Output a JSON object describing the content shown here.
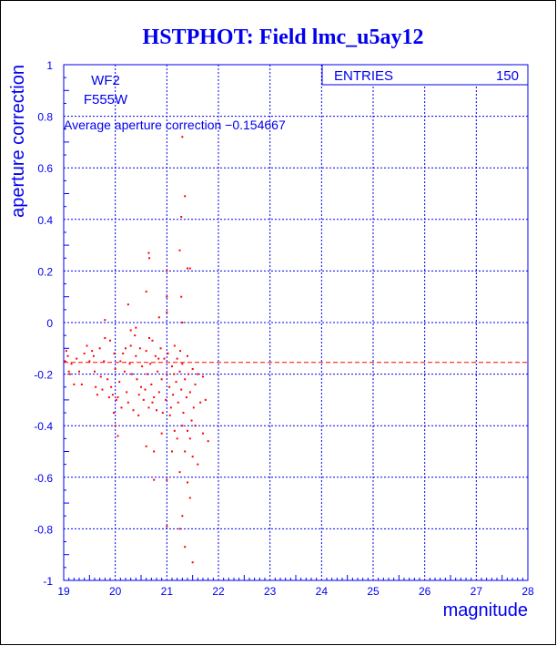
{
  "chart_data": {
    "type": "scatter",
    "title": "HSTPHOT: Field lmc_u5ay12",
    "xlabel": "magnitude",
    "ylabel": "aperture correction",
    "xlim": [
      19,
      28
    ],
    "ylim": [
      -1,
      1
    ],
    "xticks": [
      "19",
      "20",
      "21",
      "22",
      "23",
      "24",
      "25",
      "26",
      "27",
      "28"
    ],
    "yticks": [
      "-1",
      "-0.8",
      "-0.6",
      "-0.4",
      "-0.2",
      "0",
      "0.2",
      "0.4",
      "0.6",
      "0.8",
      "1"
    ],
    "grid": true,
    "labels": {
      "chip": "WF2",
      "filter": "F555W",
      "average": "Average aperture correction −0.154667"
    },
    "stats": {
      "label": "ENTRIES",
      "value": "150"
    },
    "mean_line": -0.154667,
    "colors": {
      "axes": "#0000ee",
      "points": "#ff0000",
      "mean_line": "#ff0000"
    },
    "points": [
      [
        19.02,
        -0.15
      ],
      [
        19.05,
        -0.11
      ],
      [
        19.08,
        -0.13
      ],
      [
        19.1,
        -0.19
      ],
      [
        19.15,
        -0.16
      ],
      [
        19.2,
        -0.24
      ],
      [
        19.25,
        -0.14
      ],
      [
        19.3,
        -0.19
      ],
      [
        19.4,
        -0.12
      ],
      [
        19.45,
        -0.09
      ],
      [
        19.5,
        -0.15
      ],
      [
        19.55,
        -0.11
      ],
      [
        19.6,
        -0.19
      ],
      [
        19.62,
        -0.25
      ],
      [
        19.65,
        -0.28
      ],
      [
        19.7,
        -0.1
      ],
      [
        19.72,
        -0.21
      ],
      [
        19.78,
        -0.15
      ],
      [
        19.8,
        -0.06
      ],
      [
        19.85,
        -0.22
      ],
      [
        19.88,
        -0.29
      ],
      [
        19.9,
        -0.07
      ],
      [
        19.92,
        -0.25
      ],
      [
        19.95,
        -0.28
      ],
      [
        19.97,
        -0.35
      ],
      [
        20.0,
        -0.18
      ],
      [
        20.02,
        -0.3
      ],
      [
        20.05,
        -0.29
      ],
      [
        20.08,
        -0.23
      ],
      [
        20.1,
        -0.15
      ],
      [
        20.15,
        -0.12
      ],
      [
        20.2,
        -0.1
      ],
      [
        20.22,
        -0.27
      ],
      [
        20.25,
        -0.31
      ],
      [
        20.3,
        -0.09
      ],
      [
        20.32,
        -0.2
      ],
      [
        20.35,
        -0.34
      ],
      [
        20.38,
        -0.05
      ],
      [
        20.4,
        -0.13
      ],
      [
        20.42,
        -0.22
      ],
      [
        20.45,
        -0.36
      ],
      [
        20.48,
        -0.1
      ],
      [
        20.5,
        -0.25
      ],
      [
        20.52,
        -0.17
      ],
      [
        20.55,
        -0.3
      ],
      [
        20.58,
        -0.26
      ],
      [
        20.6,
        -0.11
      ],
      [
        20.62,
        -0.2
      ],
      [
        20.65,
        -0.33
      ],
      [
        20.68,
        -0.16
      ],
      [
        20.7,
        -0.24
      ],
      [
        20.72,
        -0.07
      ],
      [
        20.75,
        -0.29
      ],
      [
        20.78,
        -0.13
      ],
      [
        20.8,
        -0.34
      ],
      [
        20.82,
        -0.19
      ],
      [
        20.85,
        -0.27
      ],
      [
        20.88,
        -0.1
      ],
      [
        20.9,
        -0.22
      ],
      [
        20.92,
        -0.35
      ],
      [
        20.95,
        -0.14
      ],
      [
        20.98,
        -0.3
      ],
      [
        21.0,
        -0.2
      ],
      [
        21.02,
        -0.12
      ],
      [
        21.05,
        -0.25
      ],
      [
        21.08,
        -0.33
      ],
      [
        21.1,
        -0.17
      ],
      [
        21.12,
        -0.28
      ],
      [
        21.15,
        -0.09
      ],
      [
        21.18,
        -0.23
      ],
      [
        21.2,
        -0.14
      ],
      [
        21.22,
        -0.31
      ],
      [
        21.25,
        -0.19
      ],
      [
        21.28,
        -0.26
      ],
      [
        21.3,
        -0.16
      ],
      [
        21.32,
        -0.35
      ],
      [
        21.35,
        -0.22
      ],
      [
        21.38,
        -0.29
      ],
      [
        21.4,
        -0.13
      ],
      [
        21.42,
        -0.2
      ],
      [
        21.45,
        -0.27
      ],
      [
        21.48,
        -0.38
      ],
      [
        21.5,
        -0.18
      ],
      [
        21.55,
        -0.24
      ],
      [
        21.6,
        -0.2
      ],
      [
        21.65,
        -0.31
      ],
      [
        21.7,
        -0.21
      ],
      [
        21.75,
        -0.3
      ],
      [
        19.12,
        -0.2
      ],
      [
        19.35,
        -0.24
      ],
      [
        19.75,
        -0.26
      ],
      [
        20.12,
        -0.33
      ],
      [
        20.28,
        -0.16
      ],
      [
        20.66,
        -0.06
      ],
      [
        20.84,
        -0.14
      ],
      [
        21.06,
        -0.36
      ],
      [
        21.26,
        -0.11
      ],
      [
        21.52,
        -0.33
      ],
      [
        19.58,
        -0.13
      ],
      [
        20.18,
        -0.19
      ],
      [
        20.72,
        -0.31
      ],
      [
        21.14,
        -0.2
      ],
      [
        19.98,
        -0.12
      ],
      [
        20.46,
        -0.28
      ],
      [
        21.3,
        0.72
      ],
      [
        21.35,
        0.49
      ],
      [
        21.28,
        0.41
      ],
      [
        20.65,
        0.27
      ],
      [
        20.66,
        0.25
      ],
      [
        21.0,
        0.2
      ],
      [
        21.4,
        0.21
      ],
      [
        21.45,
        0.21
      ],
      [
        20.6,
        0.12
      ],
      [
        21.28,
        0.1
      ],
      [
        21.0,
        0.1
      ],
      [
        20.85,
        0.02
      ],
      [
        20.25,
        0.07
      ],
      [
        19.8,
        0.01
      ],
      [
        21.0,
        0.04
      ],
      [
        20.4,
        -0.02
      ],
      [
        21.25,
        0.28
      ],
      [
        20.3,
        -0.03
      ],
      [
        21.3,
        0.0
      ],
      [
        21.4,
        -0.42
      ],
      [
        21.45,
        -0.45
      ],
      [
        21.35,
        -0.5
      ],
      [
        21.5,
        -0.52
      ],
      [
        21.25,
        -0.58
      ],
      [
        21.0,
        -0.61
      ],
      [
        20.75,
        -0.61
      ],
      [
        20.6,
        -0.48
      ],
      [
        21.45,
        -0.68
      ],
      [
        21.3,
        -0.75
      ],
      [
        21.0,
        -0.79
      ],
      [
        21.25,
        -0.8
      ],
      [
        21.35,
        -0.87
      ],
      [
        21.5,
        -0.93
      ],
      [
        21.7,
        -0.43
      ],
      [
        21.8,
        -0.46
      ],
      [
        21.6,
        -0.55
      ],
      [
        20.05,
        -0.44
      ],
      [
        21.1,
        -0.5
      ],
      [
        21.4,
        -0.62
      ],
      [
        21.2,
        -0.45
      ],
      [
        20.9,
        -0.43
      ],
      [
        21.55,
        -0.4
      ],
      [
        20.75,
        -0.5
      ],
      [
        21.3,
        -0.4
      ],
      [
        21.15,
        -0.42
      ],
      [
        20.0,
        -0.4
      ]
    ]
  }
}
